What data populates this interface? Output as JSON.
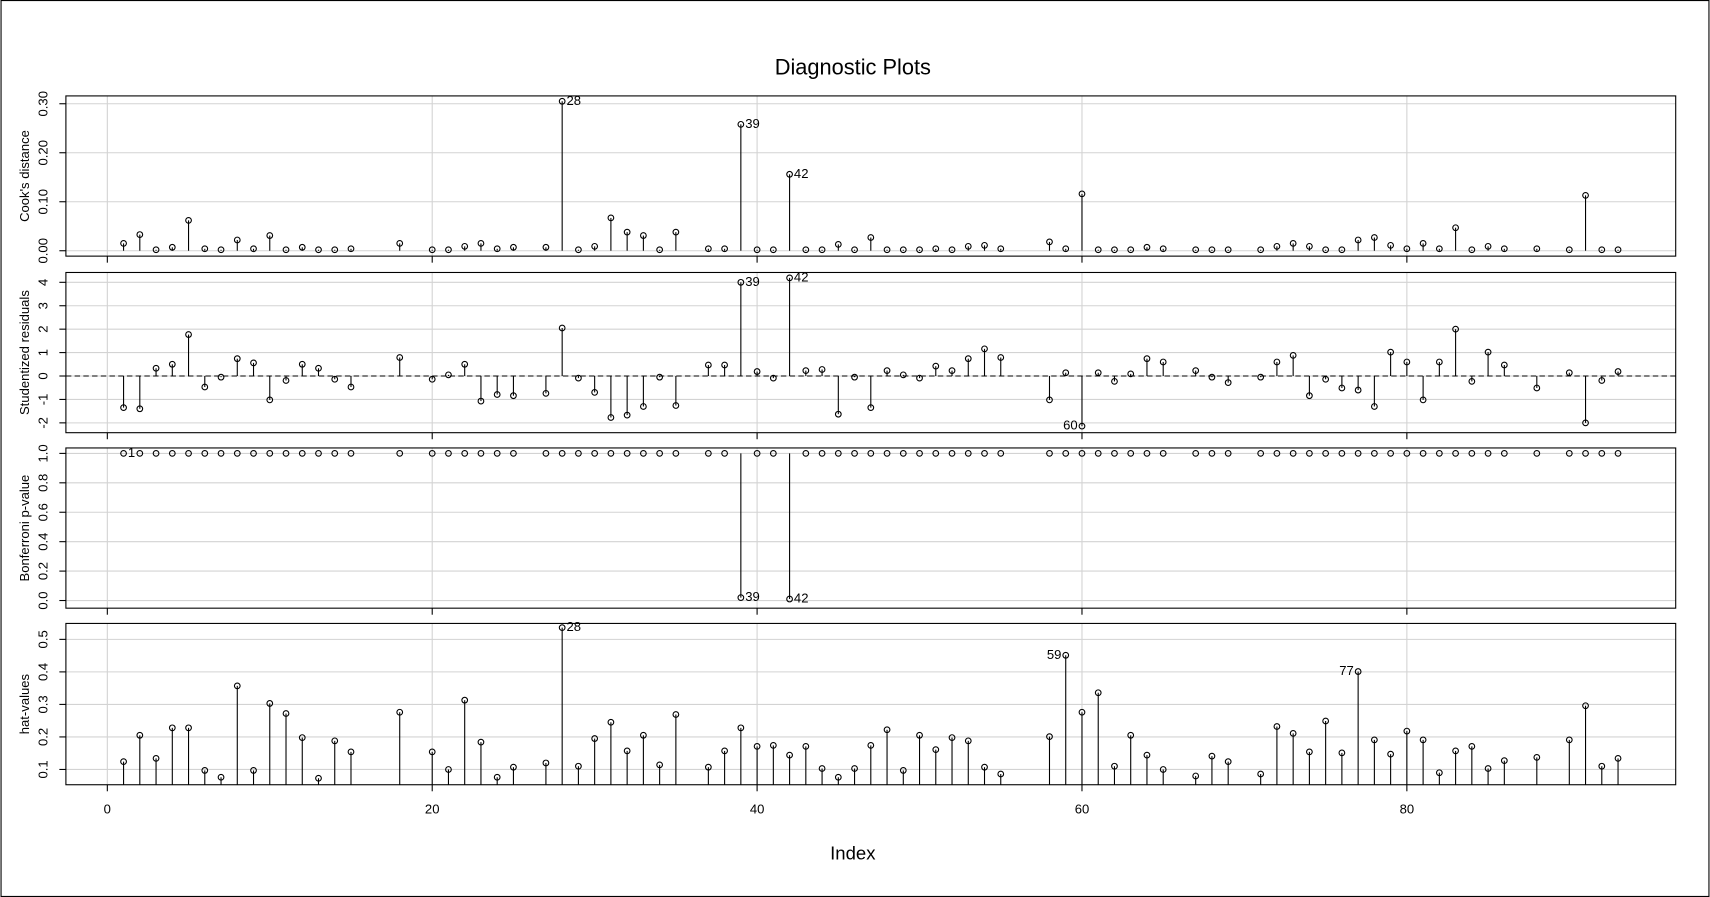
{
  "chart_data": {
    "type": "stem",
    "title": "Diagnostic Plots",
    "xlabel": "Index",
    "x": [
      1,
      2,
      3,
      4,
      5,
      6,
      7,
      8,
      9,
      10,
      11,
      12,
      13,
      14,
      15,
      18,
      20,
      21,
      22,
      23,
      24,
      25,
      27,
      28,
      29,
      30,
      31,
      32,
      33,
      34,
      35,
      37,
      38,
      39,
      40,
      41,
      42,
      43,
      44,
      45,
      46,
      47,
      48,
      49,
      50,
      51,
      52,
      53,
      54,
      55,
      58,
      59,
      60,
      61,
      62,
      63,
      64,
      65,
      67,
      68,
      69,
      71,
      72,
      73,
      74,
      75,
      76,
      77,
      78,
      79,
      80,
      81,
      82,
      83,
      84,
      85,
      86,
      88,
      90,
      91,
      92,
      93
    ],
    "xlim": [
      -2.55,
      96.55
    ],
    "xticks": [
      0,
      20,
      40,
      60,
      80
    ],
    "grid": true,
    "color": "#000000",
    "panels": [
      {
        "ylabel": "Cook's distance",
        "values": [
          0.015,
          0.033,
          0.002,
          0.007,
          0.062,
          0.004,
          0.002,
          0.022,
          0.004,
          0.031,
          0.002,
          0.007,
          0.002,
          0.002,
          0.004,
          0.015,
          0.002,
          0.002,
          0.009,
          0.015,
          0.004,
          0.007,
          0.007,
          0.305,
          0.002,
          0.009,
          0.067,
          0.038,
          0.031,
          0.002,
          0.038,
          0.004,
          0.004,
          0.258,
          0.002,
          0.002,
          0.156,
          0.002,
          0.002,
          0.013,
          0.002,
          0.027,
          0.002,
          0.002,
          0.002,
          0.004,
          0.002,
          0.009,
          0.011,
          0.004,
          0.018,
          0.004,
          0.116,
          0.002,
          0.002,
          0.002,
          0.007,
          0.004,
          0.002,
          0.002,
          0.002,
          0.002,
          0.009,
          0.015,
          0.009,
          0.002,
          0.002,
          0.022,
          0.027,
          0.011,
          0.004,
          0.015,
          0.004,
          0.047,
          0.002,
          0.009,
          0.004,
          0.004,
          0.002,
          0.113,
          0.002,
          0.002
        ],
        "ylim": [
          -0.011,
          0.316
        ],
        "yticks": [
          {
            "value": 0,
            "label": "0.00"
          },
          {
            "value": 0.1,
            "label": "0.10"
          },
          {
            "value": 0.2,
            "label": "0.20"
          },
          {
            "value": 0.3,
            "label": "0.30"
          }
        ],
        "labels": [
          28,
          39,
          42
        ]
      },
      {
        "ylabel": "Studentized residuals",
        "values": [
          -1.35,
          -1.4,
          0.33,
          0.5,
          1.77,
          -0.47,
          -0.05,
          0.74,
          0.56,
          -1.02,
          -0.19,
          0.5,
          0.33,
          -0.14,
          -0.47,
          0.79,
          -0.14,
          0.05,
          0.5,
          -1.07,
          -0.79,
          -0.84,
          -0.74,
          2.05,
          -0.09,
          -0.7,
          -1.77,
          -1.67,
          -1.3,
          -0.05,
          -1.26,
          0.47,
          0.47,
          4,
          0.19,
          -0.09,
          4.19,
          0.23,
          0.28,
          -1.63,
          -0.05,
          -1.35,
          0.23,
          0.05,
          -0.09,
          0.42,
          0.23,
          0.74,
          1.16,
          0.79,
          -1.02,
          0.14,
          -2.14,
          0.14,
          -0.23,
          0.09,
          0.74,
          0.6,
          0.23,
          -0.05,
          -0.28,
          -0.05,
          0.6,
          0.88,
          -0.84,
          -0.14,
          -0.51,
          -0.6,
          -1.3,
          1.02,
          0.6,
          -1.02,
          0.6,
          2,
          -0.23,
          1.02,
          0.47,
          -0.51,
          0.14,
          -2,
          -0.19,
          0.19
        ],
        "ylim": [
          -2.42,
          4.42
        ],
        "yticks": [
          -2,
          -1,
          0,
          1,
          2,
          3,
          4
        ],
        "hline": 0,
        "labels": [
          39,
          42,
          60
        ]
      },
      {
        "ylabel": "Bonferroni p-value",
        "values": [
          1,
          1,
          1,
          1,
          1,
          1,
          1,
          1,
          1,
          1,
          1,
          1,
          1,
          1,
          1,
          1,
          1,
          1,
          1,
          1,
          1,
          1,
          1,
          1,
          1,
          1,
          1,
          1,
          1,
          1,
          1,
          1,
          1,
          0.02,
          1,
          1,
          0.01,
          1,
          1,
          1,
          1,
          1,
          1,
          1,
          1,
          1,
          1,
          1,
          1,
          1,
          1,
          1,
          1,
          1,
          1,
          1,
          1,
          1,
          1,
          1,
          1,
          1,
          1,
          1,
          1,
          1,
          1,
          1,
          1,
          1,
          1,
          1,
          1,
          1,
          1,
          1,
          1,
          1,
          1,
          1,
          1,
          1
        ],
        "ylim": [
          -0.052,
          1.037
        ],
        "yticks": [
          {
            "value": 0,
            "label": "0.0"
          },
          0.2,
          0.4,
          0.6,
          0.8,
          {
            "value": 1,
            "label": "1.0"
          }
        ],
        "baseline": 1,
        "labels": [
          1,
          39,
          42
        ]
      },
      {
        "ylabel": "hat-values",
        "values": [
          0.124,
          0.205,
          0.134,
          0.228,
          0.228,
          0.097,
          0.076,
          0.357,
          0.097,
          0.303,
          0.272,
          0.198,
          0.073,
          0.188,
          0.154,
          0.276,
          0.154,
          0.1,
          0.313,
          0.184,
          0.076,
          0.107,
          0.12,
          0.536,
          0.11,
          0.195,
          0.245,
          0.157,
          0.205,
          0.114,
          0.269,
          0.107,
          0.157,
          0.228,
          0.171,
          0.174,
          0.144,
          0.171,
          0.103,
          0.076,
          0.103,
          0.174,
          0.222,
          0.097,
          0.205,
          0.161,
          0.198,
          0.188,
          0.107,
          0.086,
          0.201,
          0.451,
          0.276,
          0.336,
          0.11,
          0.205,
          0.144,
          0.1,
          0.08,
          0.141,
          0.124,
          0.086,
          0.232,
          0.211,
          0.154,
          0.249,
          0.151,
          0.401,
          0.191,
          0.147,
          0.218,
          0.191,
          0.09,
          0.157,
          0.171,
          0.103,
          0.127,
          0.137,
          0.191,
          0.296,
          0.11,
          0.134
        ],
        "ylim": [
          0.053,
          0.549
        ],
        "yticks": [
          0.1,
          0.2,
          0.3,
          0.4,
          0.5
        ],
        "labels": [
          28,
          59,
          77
        ]
      }
    ]
  }
}
